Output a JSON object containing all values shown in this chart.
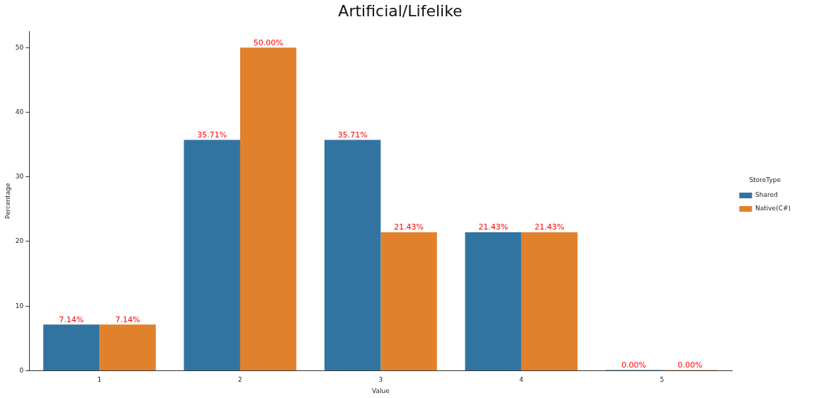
{
  "chart_data": {
    "type": "bar",
    "title": "Artificial/Lifelike",
    "xlabel": "Value",
    "ylabel": "Percentage",
    "legend_title": "StoreType",
    "categories": [
      "1",
      "2",
      "3",
      "4",
      "5"
    ],
    "series": [
      {
        "name": "Shared",
        "color": "#3274a1",
        "values": [
          7.14,
          35.71,
          35.71,
          21.43,
          0
        ],
        "value_labels": [
          "7.14%",
          "35.71%",
          "35.71%",
          "21.43%",
          "0.00%"
        ]
      },
      {
        "name": "Native(C#)",
        "color": "#e1812c",
        "values": [
          7.14,
          50,
          21.43,
          21.43,
          0
        ],
        "value_labels": [
          "7.14%",
          "50.00%",
          "21.43%",
          "21.43%",
          "0.00%"
        ]
      }
    ],
    "ylim": [
      0,
      52.5
    ],
    "yticks": [
      0,
      10,
      20,
      30,
      40,
      50
    ],
    "grid": false,
    "legend": "right"
  }
}
